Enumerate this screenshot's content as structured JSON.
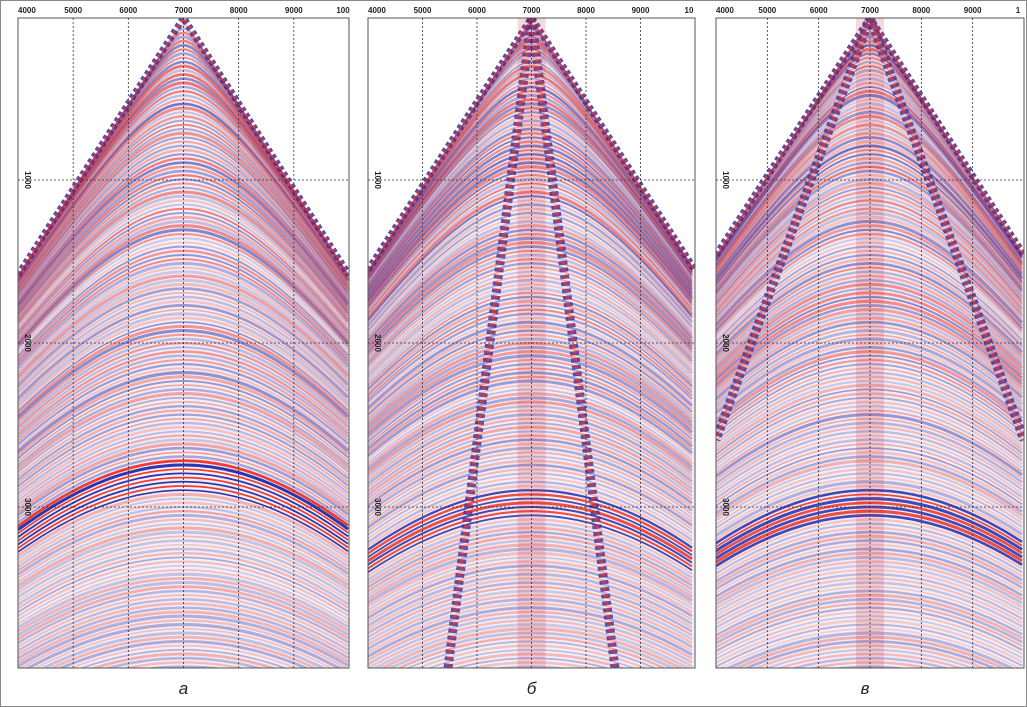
{
  "panels": [
    {
      "caption": "а",
      "x_ticks": [
        4000,
        5000,
        6000,
        7000,
        8000,
        9000,
        "100"
      ],
      "y_ticks": [
        1000,
        2000,
        3000
      ]
    },
    {
      "caption": "б",
      "x_ticks": [
        4000,
        5000,
        6000,
        7000,
        8000,
        9000,
        "10"
      ],
      "y_ticks": [
        1000,
        2000,
        3000
      ]
    },
    {
      "caption": "в",
      "x_ticks": [
        4000,
        5000,
        6000,
        7000,
        8000,
        9000,
        "1"
      ],
      "y_ticks": [
        1000,
        2000,
        3000
      ]
    }
  ]
}
